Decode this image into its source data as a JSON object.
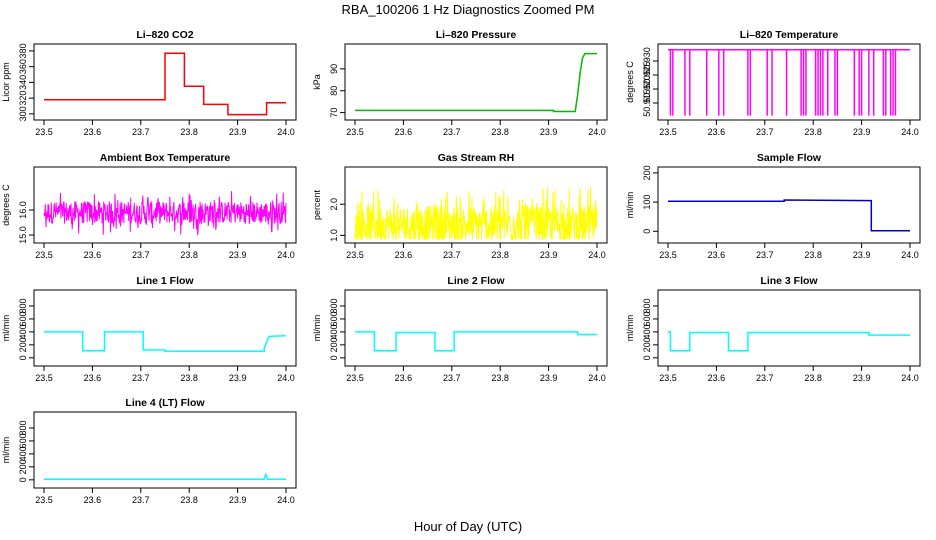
{
  "title": "RBA_100206  1 Hz Diagnostics Zoomed PM",
  "xlabel": "Hour of Day (UTC)",
  "chart_data": [
    {
      "type": "line",
      "title": "Li–820 CO2",
      "ylabel": "Licor ppm",
      "color": "#ff0000",
      "xlim": [
        23.5,
        24.0
      ],
      "ylim": [
        296,
        385
      ],
      "xticks": [
        "23.5",
        "23.6",
        "23.7",
        "23.8",
        "23.9",
        "24.0"
      ],
      "yticks": [
        "300",
        "320",
        "340",
        "360",
        "380"
      ],
      "series": [
        {
          "x": [
            23.5,
            23.75,
            23.75,
            23.79,
            23.79,
            23.83,
            23.83,
            23.88,
            23.88,
            23.96,
            23.96,
            24.0
          ],
          "y": [
            318,
            318,
            377,
            377,
            335,
            335,
            312,
            312,
            299,
            299,
            314,
            314
          ]
        }
      ]
    },
    {
      "type": "line",
      "title": "Li–820 Pressure",
      "ylabel": "kPa",
      "color": "#00bb00",
      "xlim": [
        23.5,
        24.0
      ],
      "ylim": [
        68,
        100
      ],
      "xticks": [
        "23.5",
        "23.6",
        "23.7",
        "23.8",
        "23.9",
        "24.0"
      ],
      "yticks": [
        "70",
        "80",
        "90"
      ],
      "series": [
        {
          "x": [
            23.5,
            23.91,
            23.91,
            23.955,
            23.96,
            23.965,
            23.97,
            23.975,
            24.0
          ],
          "y": [
            71,
            71,
            70.5,
            70.5,
            78,
            88,
            95,
            97,
            97
          ]
        }
      ]
    },
    {
      "type": "line",
      "title": "Li–820 Temperature",
      "ylabel": "degrees C",
      "color": "#ff00ff",
      "xlim": [
        23.5,
        24.0
      ],
      "ylim": [
        50.91,
        50.935
      ],
      "xticks": [
        "23.5",
        "23.6",
        "23.7",
        "23.8",
        "23.9",
        "24.0"
      ],
      "yticks": [
        "50.915",
        "50.920",
        "50.925",
        "50.930"
      ],
      "spikes_x": [
        23.505,
        23.51,
        23.535,
        23.545,
        23.58,
        23.605,
        23.615,
        23.665,
        23.67,
        23.705,
        23.715,
        23.745,
        23.775,
        23.78,
        23.785,
        23.805,
        23.81,
        23.815,
        23.82,
        23.83,
        23.845,
        23.85,
        23.885,
        23.895,
        23.9,
        23.915,
        23.925,
        23.945,
        23.95,
        23.96,
        23.965,
        23.97
      ],
      "series": [
        {
          "baseline": 50.934,
          "spike_min": 50.9105
        }
      ]
    },
    {
      "type": "line",
      "title": "Ambient Box Temperature",
      "ylabel": "degrees C",
      "color": "#ff00ff",
      "xlim": [
        23.5,
        24.0
      ],
      "ylim": [
        14.8,
        17.6
      ],
      "xticks": [
        "23.5",
        "23.6",
        "23.7",
        "23.8",
        "23.9",
        "24.0"
      ],
      "yticks": [
        "15.0",
        "16.0"
      ],
      "series": [
        {
          "mean": 15.9,
          "noise": 0.9
        }
      ]
    },
    {
      "type": "line",
      "title": "Gas Stream RH",
      "ylabel": "percent",
      "color": "#ffff00",
      "xlim": [
        23.5,
        24.0
      ],
      "ylim": [
        0.85,
        3.1
      ],
      "xticks": [
        "23.5",
        "23.6",
        "23.7",
        "23.8",
        "23.9",
        "24.0"
      ],
      "yticks": [
        "1.0",
        "2.0"
      ],
      "series": [
        {
          "mean": 1.35,
          "noise": 1.2
        }
      ]
    },
    {
      "type": "line",
      "title": "Sample Flow",
      "ylabel": "ml/min",
      "color": "#0000cc",
      "xlim": [
        23.5,
        24.0
      ],
      "ylim": [
        -30,
        210
      ],
      "xticks": [
        "23.5",
        "23.6",
        "23.7",
        "23.8",
        "23.9",
        "24.0"
      ],
      "yticks": [
        "0",
        "100",
        "200"
      ],
      "series": [
        {
          "x": [
            23.5,
            23.74,
            23.74,
            23.92,
            23.92,
            24.0
          ],
          "y": [
            103,
            103,
            107,
            105,
            2,
            2
          ]
        }
      ]
    },
    {
      "type": "line",
      "title": "Line 1 Flow",
      "ylabel": "ml/min",
      "color": "#00ffff",
      "xlim": [
        23.5,
        24.0
      ],
      "ylim": [
        -80,
        1000
      ],
      "xticks": [
        "23.5",
        "23.6",
        "23.7",
        "23.8",
        "23.9",
        "24.0"
      ],
      "yticks": [
        "0",
        "200",
        "400",
        "600",
        "800"
      ],
      "series": [
        {
          "x": [
            23.5,
            23.58,
            23.58,
            23.625,
            23.625,
            23.705,
            23.705,
            23.75,
            23.75,
            23.955,
            23.955,
            23.965,
            24.0
          ],
          "y": [
            400,
            400,
            110,
            110,
            400,
            400,
            120,
            120,
            100,
            100,
            150,
            330,
            340
          ]
        }
      ]
    },
    {
      "type": "line",
      "title": "Line 2 Flow",
      "ylabel": "ml/min",
      "color": "#00ffff",
      "xlim": [
        23.5,
        24.0
      ],
      "ylim": [
        -80,
        1000
      ],
      "xticks": [
        "23.5",
        "23.6",
        "23.7",
        "23.8",
        "23.9",
        "24.0"
      ],
      "yticks": [
        "0",
        "200",
        "400",
        "600",
        "800"
      ],
      "series": [
        {
          "x": [
            23.5,
            23.54,
            23.54,
            23.585,
            23.585,
            23.665,
            23.665,
            23.705,
            23.705,
            23.96,
            23.96,
            24.0
          ],
          "y": [
            400,
            400,
            110,
            110,
            390,
            390,
            110,
            110,
            400,
            400,
            360,
            360
          ]
        }
      ]
    },
    {
      "type": "line",
      "title": "Line 3 Flow",
      "ylabel": "ml/min",
      "color": "#00ffff",
      "xlim": [
        23.5,
        24.0
      ],
      "ylim": [
        -80,
        1000
      ],
      "xticks": [
        "23.5",
        "23.6",
        "23.7",
        "23.8",
        "23.9",
        "24.0"
      ],
      "yticks": [
        "0",
        "200",
        "400",
        "600",
        "800"
      ],
      "series": [
        {
          "x": [
            23.5,
            23.505,
            23.505,
            23.545,
            23.545,
            23.625,
            23.625,
            23.665,
            23.665,
            23.915,
            23.915,
            24.0
          ],
          "y": [
            400,
            400,
            110,
            110,
            390,
            390,
            110,
            110,
            390,
            390,
            350,
            350
          ]
        }
      ]
    },
    {
      "type": "line",
      "title": "Line 4 (LT) Flow",
      "ylabel": "ml/min",
      "color": "#00ffff",
      "xlim": [
        23.5,
        24.0
      ],
      "ylim": [
        -80,
        1000
      ],
      "xticks": [
        "23.5",
        "23.6",
        "23.7",
        "23.8",
        "23.9",
        "24.0"
      ],
      "yticks": [
        "0",
        "200",
        "400",
        "600",
        "800"
      ],
      "series": [
        {
          "x": [
            23.5,
            23.955,
            23.958,
            23.962,
            23.965,
            24.0
          ],
          "y": [
            10,
            10,
            80,
            10,
            10,
            10
          ]
        }
      ]
    }
  ]
}
